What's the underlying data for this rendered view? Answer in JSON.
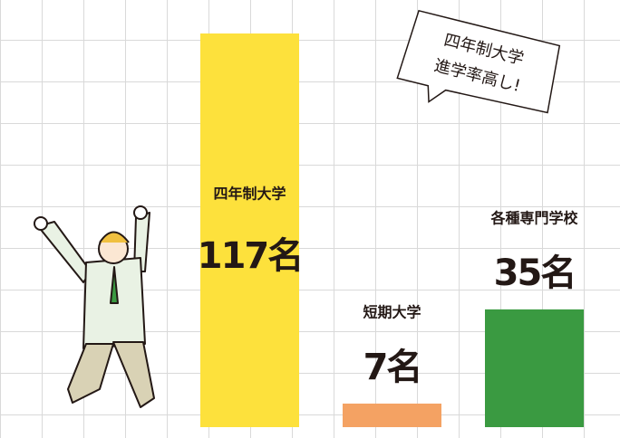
{
  "chart_data": {
    "type": "bar",
    "categories": [
      "四年制大学",
      "短期大学",
      "各種専門学校"
    ],
    "values": [
      117,
      7,
      35
    ],
    "value_labels": [
      "117名",
      "7名",
      "35名"
    ],
    "colors": [
      "#fde13c",
      "#f4a263",
      "#3a9a41"
    ],
    "annotation": [
      "四年制大学",
      "進学率高し!"
    ]
  }
}
